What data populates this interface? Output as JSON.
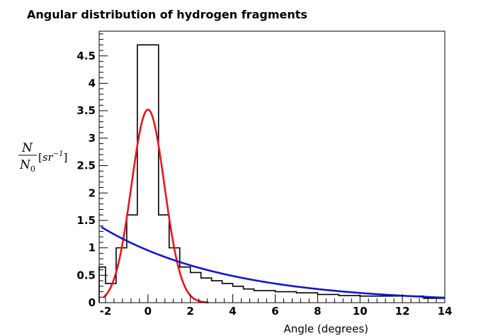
{
  "chart_data": {
    "type": "histogram",
    "title": "Angular distribution of hydrogen fragments",
    "xlabel": "Angle (degrees)",
    "ylabel": {
      "numerator": "N",
      "denominator": "N",
      "denominator_subscript": "0",
      "unit_open": "[",
      "unit_base": "sr",
      "unit_exponent": "−1",
      "unit_close": "]"
    },
    "xlim": [
      -2.3,
      14
    ],
    "ylim": [
      0,
      4.95
    ],
    "xticks": [
      -2,
      0,
      2,
      4,
      6,
      8,
      10,
      12,
      14
    ],
    "xtick_labels": [
      "-2",
      "0",
      "2",
      "4",
      "6",
      "8",
      "10",
      "12",
      "14"
    ],
    "yticks": [
      0,
      0.5,
      1,
      1.5,
      2,
      2.5,
      3,
      3.5,
      4,
      4.5
    ],
    "ytick_labels": [
      "0",
      "0.5",
      "1",
      "1.5",
      "2",
      "2.5",
      "3",
      "3.5",
      "4",
      "4.5"
    ],
    "histogram": {
      "color": "#000000",
      "bin_edges": [
        -2.3,
        -2.0,
        -1.5,
        -1.0,
        -0.5,
        0.5,
        1.0,
        1.5,
        2.0,
        2.5,
        3.0,
        3.5,
        4.0,
        4.5,
        5.0,
        6.0,
        7.0,
        8.0,
        9.0,
        10.0,
        11.0,
        12.0,
        13.0,
        14.0
      ],
      "values": [
        0.65,
        0.35,
        1.0,
        1.6,
        4.7,
        1.6,
        1.0,
        0.65,
        0.55,
        0.45,
        0.4,
        0.35,
        0.3,
        0.25,
        0.22,
        0.2,
        0.18,
        0.15,
        0.13,
        0.12,
        0.12,
        0.12,
        0.08
      ]
    },
    "series": [
      {
        "type": "gaussian",
        "color": "#e8141e",
        "amplitude": 3.52,
        "mean": 0.0,
        "sigma": 0.78,
        "x_range": [
          -2.1,
          2.85
        ]
      },
      {
        "type": "exponential",
        "color": "#1414d2",
        "y_at_x_min": 1.38,
        "x_min": -2.2,
        "decay": 0.168,
        "x_range": [
          -2.2,
          14
        ]
      }
    ]
  }
}
